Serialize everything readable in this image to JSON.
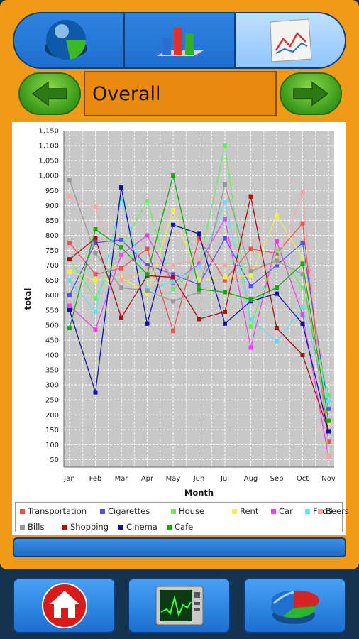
{
  "header": {
    "tabs": [
      {
        "name": "pie-3d-icon"
      },
      {
        "name": "bar-chart-icon"
      },
      {
        "name": "line-chart-icon",
        "selected": true
      }
    ],
    "title": "Overall"
  },
  "chart_data": {
    "type": "line",
    "xlabel": "Month",
    "ylabel": "total",
    "categories": [
      "Jan",
      "Feb",
      "Mar",
      "Apr",
      "May",
      "Jun",
      "Jul",
      "Aug",
      "Sep",
      "Oct",
      "Nov"
    ],
    "yticks": [
      "50",
      "100",
      "150",
      "200",
      "250",
      "300",
      "350",
      "400",
      "450",
      "500",
      "550",
      "600",
      "650",
      "700",
      "750",
      "800",
      "850",
      "900",
      "950",
      "1,000",
      "1,050",
      "1,100",
      "1,150"
    ],
    "ylim": [
      25,
      1150
    ],
    "grid": true,
    "legend_position": "bottom",
    "series": [
      {
        "name": "Transportation",
        "color": "#f05050",
        "values": [
          775,
          670,
          690,
          755,
          480,
          790,
          650,
          755,
          740,
          840,
          110
        ]
      },
      {
        "name": "Cigarettes",
        "color": "#5555ee",
        "values": [
          600,
          775,
          785,
          700,
          670,
          635,
          790,
          630,
          700,
          775,
          220
        ]
      },
      {
        "name": "House",
        "color": "#66ee66",
        "values": [
          720,
          590,
          760,
          915,
          620,
          700,
          1100,
          495,
          750,
          625,
          265
        ]
      },
      {
        "name": "Rent",
        "color": "#eeee44",
        "values": [
          680,
          650,
          660,
          605,
          885,
          650,
          660,
          665,
          865,
          725,
          175
        ]
      },
      {
        "name": "Car",
        "color": "#ee44ee",
        "values": [
          565,
          485,
          735,
          800,
          640,
          705,
          855,
          425,
          780,
          535,
          60
        ]
      },
      {
        "name": "Food",
        "color": "#66ddee",
        "values": [
          650,
          545,
          920,
          620,
          645,
          695,
          910,
          520,
          445,
          560,
          245
        ]
      },
      {
        "name": "Beers",
        "color": "#f5a8a8",
        "values": [
          930,
          895,
          650,
          690,
          700,
          720,
          700,
          690,
          710,
          945,
          60
        ]
      },
      {
        "name": "Bills",
        "color": "#999999",
        "values": [
          985,
          740,
          625,
          615,
          580,
          610,
          970,
          680,
          715,
          670,
          145
        ]
      },
      {
        "name": "Shopping",
        "color": "#aa1111",
        "values": [
          720,
          790,
          525,
          665,
          660,
          520,
          545,
          930,
          490,
          400,
          145
        ]
      },
      {
        "name": "Cinema",
        "color": "#1111aa",
        "values": [
          550,
          275,
          960,
          505,
          835,
          805,
          505,
          580,
          605,
          505,
          145
        ]
      },
      {
        "name": "Cafe",
        "color": "#11aa11",
        "values": [
          490,
          820,
          760,
          670,
          1000,
          620,
          610,
          585,
          625,
          705,
          180
        ]
      }
    ]
  },
  "bottom_nav": [
    {
      "icon": "home-icon"
    },
    {
      "icon": "monitor-graph-icon"
    },
    {
      "icon": "pie-chart-icon"
    }
  ]
}
